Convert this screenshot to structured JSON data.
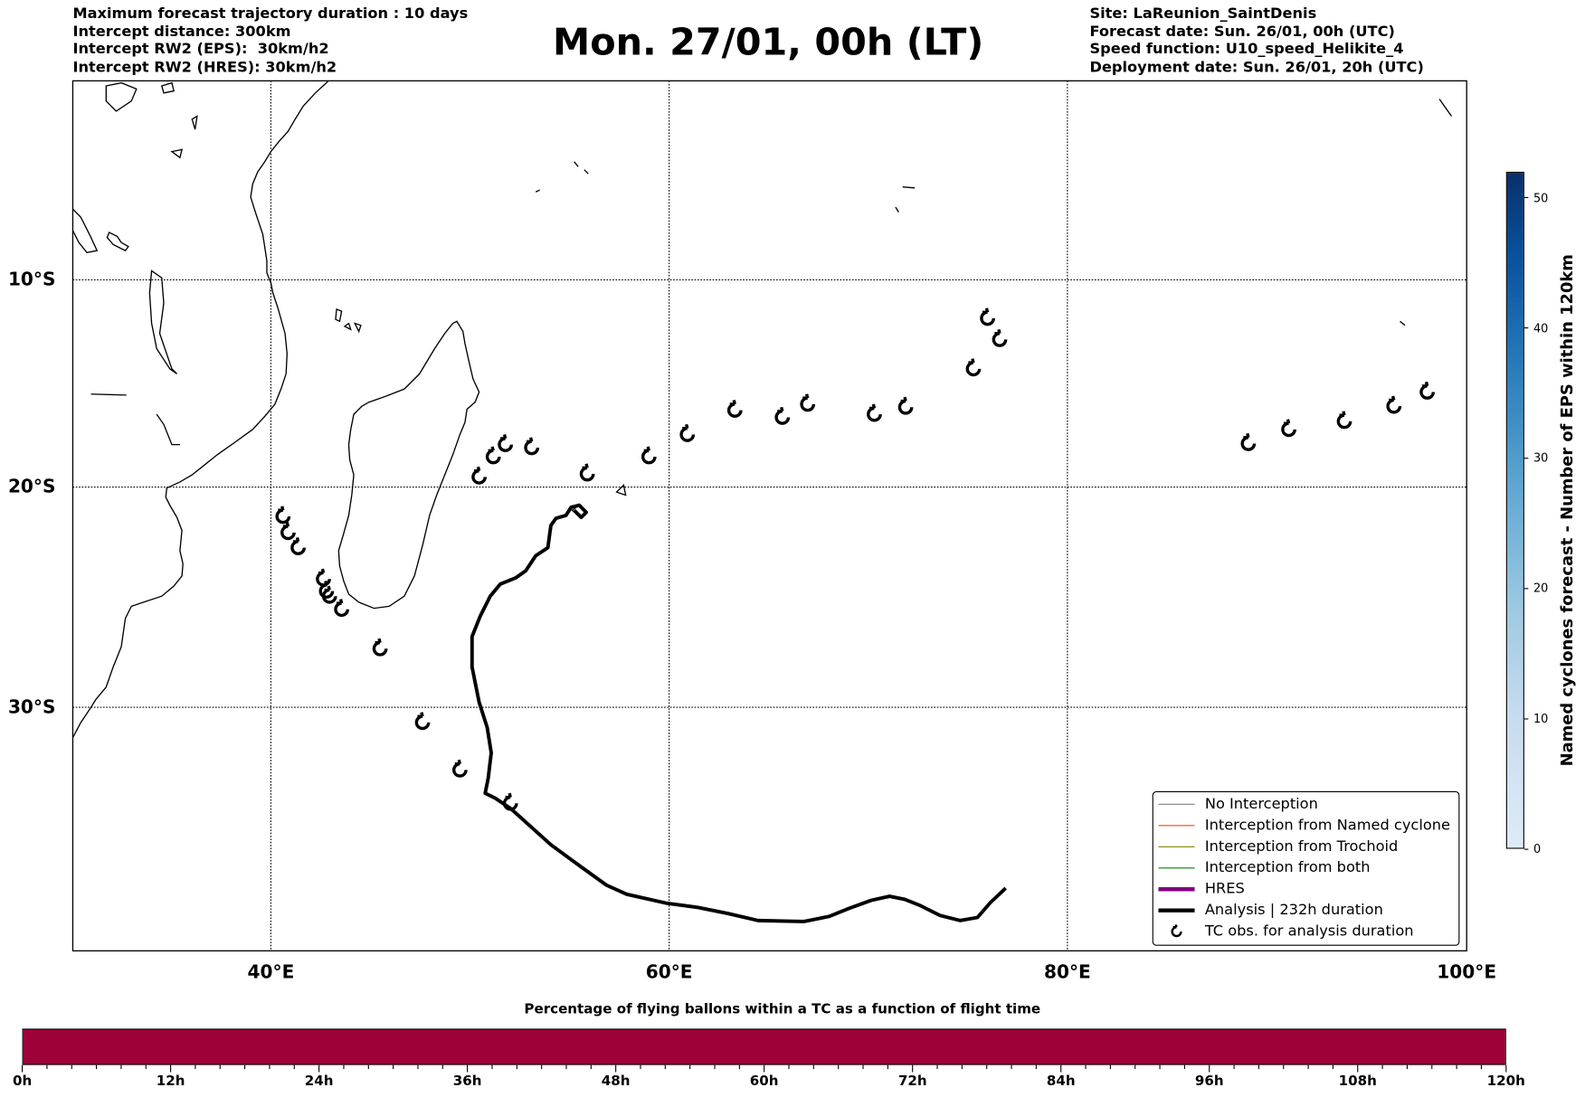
{
  "header": {
    "title": "Mon. 27/01, 00h (LT)",
    "left_lines": [
      "Maximum forecast trajectory duration : 10 days",
      "Intercept distance: 300km",
      "Intercept RW2 (EPS):  30km/h2",
      "Intercept RW2 (HRES): 30km/h2"
    ],
    "right_lines": [
      "Site: LaReunion_SaintDenis",
      "Forecast date: Sun. 26/01, 00h (UTC)",
      "Speed function: U10_speed_Helikite_4",
      "Deployment date: Sun. 26/01, 20h (UTC)"
    ]
  },
  "map": {
    "lon_labels": [
      "40°E",
      "60°E",
      "80°E",
      "100°E"
    ],
    "lat_labels": [
      "10°S",
      "20°S",
      "30°S"
    ],
    "analysis_track_color": "#000000",
    "tc_obs_icon": "cyclone-icon"
  },
  "legend": {
    "items": [
      {
        "label": "No Interception",
        "color": "#808080",
        "width": 1
      },
      {
        "label": "Interception from Named cyclone",
        "color": "#ff4500",
        "width": 1
      },
      {
        "label": "Interception from Trochoid",
        "color": "#808000",
        "width": 1
      },
      {
        "label": "Interception from both",
        "color": "#008000",
        "width": 1
      },
      {
        "label": "HRES",
        "color": "#800080",
        "width": 4
      },
      {
        "label": "Analysis | 232h duration",
        "color": "#000000",
        "width": 4
      },
      {
        "label": "TC obs. for analysis duration",
        "color": "#000000",
        "width": 0
      }
    ]
  },
  "colorbar": {
    "label": "Named cyclones forecast - Number of EPS within 120km",
    "ticks": [
      "0",
      "10",
      "20",
      "30",
      "40",
      "50"
    ],
    "range": [
      0,
      52
    ]
  },
  "flight_bar": {
    "title": "Percentage of flying ballons within a TC as a function of flight time",
    "ticks": [
      "0h",
      "12h",
      "24h",
      "36h",
      "48h",
      "60h",
      "72h",
      "84h",
      "96h",
      "108h",
      "120h"
    ],
    "color": "#9e003a",
    "percentage_filled": 100
  }
}
